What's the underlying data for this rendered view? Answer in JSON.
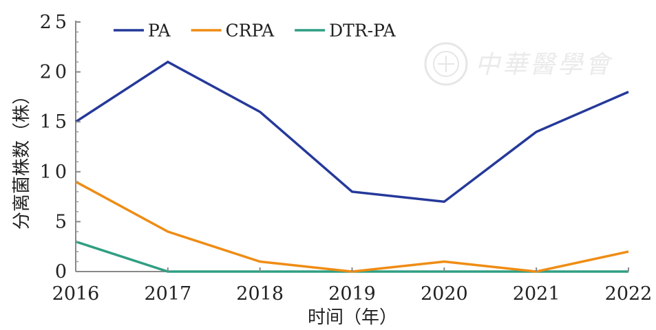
{
  "chart_data": {
    "type": "line",
    "title": "",
    "xlabel": "时间（年）",
    "ylabel": "分离菌株数（株）",
    "x": [
      "2016",
      "2017",
      "2018",
      "2019",
      "2020",
      "2021",
      "2022"
    ],
    "y_ticks": [
      "0",
      "5",
      "10",
      "15",
      "20",
      "25"
    ],
    "ylim": [
      0,
      25
    ],
    "grid": false,
    "legend_position": "top-left",
    "series": [
      {
        "name": "PA",
        "color": "#25399a",
        "values": [
          15,
          21,
          16,
          8,
          7,
          14,
          18
        ]
      },
      {
        "name": "CRPA",
        "color": "#ef8c14",
        "values": [
          9,
          4,
          1,
          0,
          1,
          0,
          2
        ]
      },
      {
        "name": "DTR-PA",
        "color": "#2f9e83",
        "values": [
          3,
          0,
          0,
          0,
          0,
          0,
          0
        ]
      }
    ]
  },
  "watermark": {
    "text": "中華醫學會"
  }
}
